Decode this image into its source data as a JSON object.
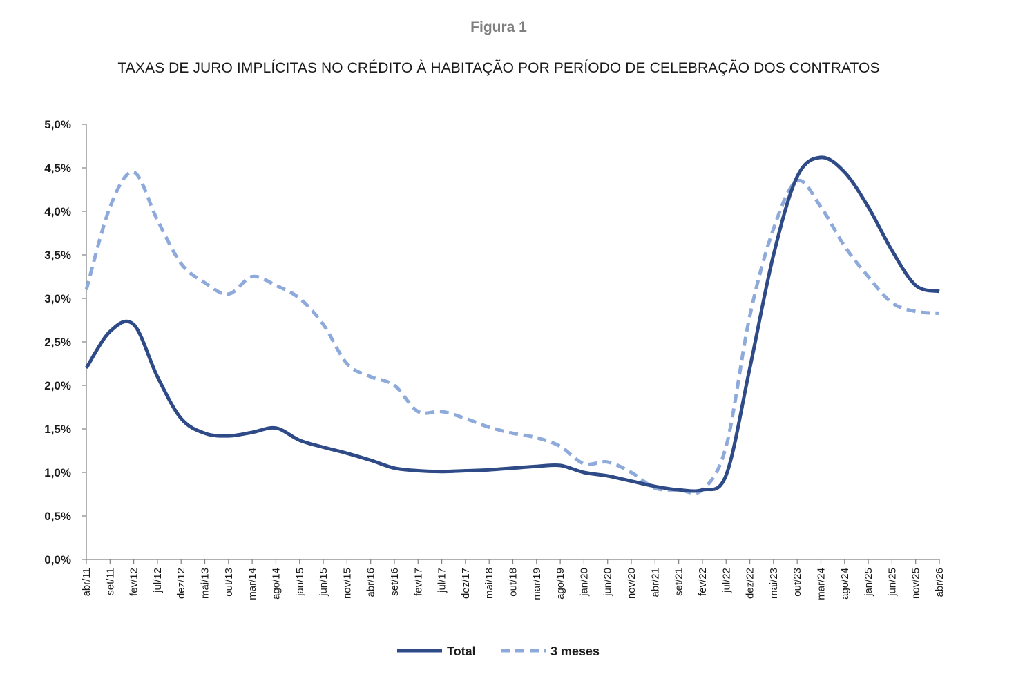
{
  "figure_label": "Figura 1",
  "chart_data": {
    "type": "line",
    "title": "TAXAS DE JURO IMPLÍCITAS NO CRÉDITO À HABITAÇÃO POR PERÍODO DE CELEBRAÇÃO DOS CONTRATOS",
    "xlabel": "",
    "ylabel": "",
    "x_start": "abr/11",
    "x_end": "abr/26",
    "x_ticks": [
      "abr/11",
      "set/11",
      "fev/12",
      "jul/12",
      "dez/12",
      "mai/13",
      "out/13",
      "mar/14",
      "ago/14",
      "jan/15",
      "jun/15",
      "nov/15",
      "abr/16",
      "set/16",
      "fev/17",
      "jul/17",
      "dez/17",
      "mai/18",
      "out/18",
      "mar/19",
      "ago/19",
      "jan/20",
      "jun/20",
      "nov/20",
      "abr/21",
      "set/21",
      "fev/22",
      "jul/22",
      "dez/22",
      "mai/23",
      "out/23",
      "mar/24",
      "ago/24",
      "jan/25",
      "jun/25",
      "nov/25",
      "abr/26"
    ],
    "y_ticks": [
      "0,0%",
      "0,5%",
      "1,0%",
      "1,5%",
      "2,0%",
      "2,5%",
      "3,0%",
      "3,5%",
      "4,0%",
      "4,5%",
      "5,0%"
    ],
    "ylim": [
      0,
      5.0
    ],
    "grid": false,
    "legend_position": "bottom",
    "colors": {
      "total": "#2e4a87",
      "tres_meses": "#8eaadb"
    },
    "series": [
      {
        "name": "Total",
        "style": "solid",
        "x": [
          "abr/11",
          "set/11",
          "fev/12",
          "jul/12",
          "dez/12",
          "mai/13",
          "out/13",
          "mar/14",
          "ago/14",
          "jan/15",
          "jun/15",
          "nov/15",
          "abr/16",
          "set/16",
          "fev/17",
          "jul/17",
          "dez/17",
          "mai/18",
          "out/18",
          "mar/19",
          "ago/19",
          "jan/20",
          "jun/20",
          "nov/20",
          "abr/21",
          "set/21",
          "fev/22",
          "jul/22",
          "dez/22",
          "mai/23",
          "out/23",
          "mar/24",
          "ago/24",
          "jan/25",
          "jun/25",
          "nov/25",
          "abr/26"
        ],
        "values": [
          2.2,
          2.62,
          2.7,
          2.1,
          1.62,
          1.45,
          1.42,
          1.46,
          1.51,
          1.37,
          1.29,
          1.22,
          1.14,
          1.05,
          1.02,
          1.01,
          1.02,
          1.03,
          1.05,
          1.07,
          1.08,
          1.0,
          0.96,
          0.9,
          0.84,
          0.8,
          0.8,
          0.97,
          2.2,
          3.5,
          4.4,
          4.62,
          4.45,
          4.05,
          3.55,
          3.15,
          3.08
        ]
      },
      {
        "name": "3 meses",
        "style": "dashed",
        "x": [
          "abr/11",
          "set/11",
          "fev/12",
          "jul/12",
          "dez/12",
          "mai/13",
          "out/13",
          "mar/14",
          "ago/14",
          "jan/15",
          "jun/15",
          "nov/15",
          "abr/16",
          "set/16",
          "fev/17",
          "jul/17",
          "dez/17",
          "mai/18",
          "out/18",
          "mar/19",
          "ago/19",
          "jan/20",
          "jun/20",
          "nov/20",
          "abr/21",
          "set/21",
          "fev/22",
          "jul/22",
          "dez/22",
          "mai/23",
          "out/23",
          "mar/24",
          "ago/24",
          "jan/25",
          "jun/25",
          "nov/25",
          "abr/26"
        ],
        "values": [
          3.1,
          4.05,
          4.45,
          3.9,
          3.4,
          3.18,
          3.05,
          3.25,
          3.15,
          3.0,
          2.7,
          2.25,
          2.1,
          2.0,
          1.7,
          1.7,
          1.62,
          1.52,
          1.45,
          1.4,
          1.3,
          1.1,
          1.12,
          1.0,
          0.82,
          0.8,
          0.8,
          1.3,
          2.8,
          3.8,
          4.35,
          4.05,
          3.6,
          3.25,
          2.95,
          2.85,
          2.83
        ]
      }
    ]
  },
  "legend": {
    "total": "Total",
    "tres_meses": "3 meses"
  }
}
